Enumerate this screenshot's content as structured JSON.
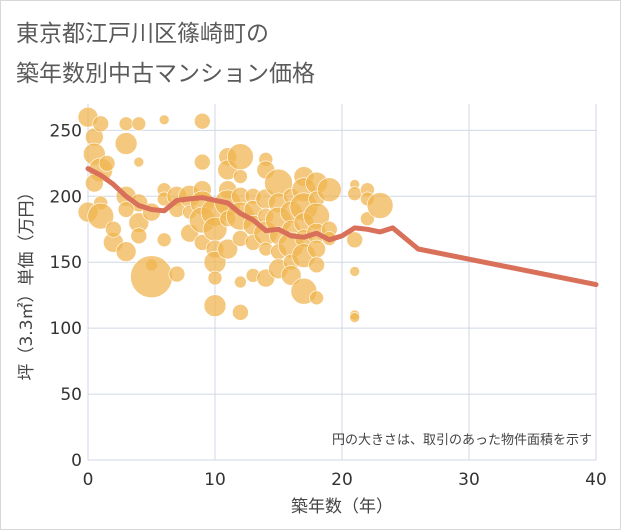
{
  "title_line1": "東京都江戸川区篠崎町の",
  "title_line2": "築年数別中古マンション価格",
  "note": "円の大きさは、取引のあった物件面積を示す",
  "colors": {
    "bubble": "#f0b44e",
    "line": "#d9705a",
    "grid": "#d0d8e4",
    "plot_bg": "#ffffff"
  },
  "chart_data": {
    "type": "scatter",
    "xlabel": "築年数（年）",
    "ylabel": "坪（3.3㎡）単価（万円）",
    "xlim": [
      0,
      40
    ],
    "ylim": [
      0,
      270
    ],
    "xticks": [
      0,
      10,
      20,
      30,
      40
    ],
    "yticks": [
      0,
      50,
      100,
      150,
      200,
      250
    ],
    "grid": true,
    "bubbles": [
      {
        "x": 0,
        "y": 260,
        "r": 10
      },
      {
        "x": 0.5,
        "y": 245,
        "r": 9
      },
      {
        "x": 1,
        "y": 255,
        "r": 8
      },
      {
        "x": 0.5,
        "y": 232,
        "r": 11
      },
      {
        "x": 1,
        "y": 220,
        "r": 12
      },
      {
        "x": 0.5,
        "y": 210,
        "r": 9
      },
      {
        "x": 1,
        "y": 195,
        "r": 7
      },
      {
        "x": 0,
        "y": 188,
        "r": 10
      },
      {
        "x": 1,
        "y": 185,
        "r": 13
      },
      {
        "x": 2,
        "y": 165,
        "r": 10
      },
      {
        "x": 2,
        "y": 175,
        "r": 8
      },
      {
        "x": 1.5,
        "y": 225,
        "r": 8
      },
      {
        "x": 3,
        "y": 255,
        "r": 7
      },
      {
        "x": 4,
        "y": 255,
        "r": 7
      },
      {
        "x": 3,
        "y": 240,
        "r": 11
      },
      {
        "x": 3,
        "y": 200,
        "r": 10
      },
      {
        "x": 4,
        "y": 195,
        "r": 9
      },
      {
        "x": 3,
        "y": 190,
        "r": 8
      },
      {
        "x": 4,
        "y": 180,
        "r": 10
      },
      {
        "x": 4,
        "y": 170,
        "r": 8
      },
      {
        "x": 3,
        "y": 158,
        "r": 10
      },
      {
        "x": 4,
        "y": 226,
        "r": 5
      },
      {
        "x": 5,
        "y": 188,
        "r": 9
      },
      {
        "x": 6,
        "y": 258,
        "r": 5
      },
      {
        "x": 6,
        "y": 205,
        "r": 7
      },
      {
        "x": 6,
        "y": 198,
        "r": 7
      },
      {
        "x": 6,
        "y": 167,
        "r": 7
      },
      {
        "x": 5,
        "y": 148,
        "r": 6
      },
      {
        "x": 5,
        "y": 139,
        "r": 21
      },
      {
        "x": 7,
        "y": 200,
        "r": 10
      },
      {
        "x": 7,
        "y": 190,
        "r": 8
      },
      {
        "x": 7,
        "y": 141,
        "r": 8
      },
      {
        "x": 8,
        "y": 200,
        "r": 11
      },
      {
        "x": 8,
        "y": 188,
        "r": 7
      },
      {
        "x": 8,
        "y": 172,
        "r": 9
      },
      {
        "x": 9,
        "y": 257,
        "r": 8
      },
      {
        "x": 9,
        "y": 226,
        "r": 8
      },
      {
        "x": 9,
        "y": 205,
        "r": 9
      },
      {
        "x": 9,
        "y": 195,
        "r": 12
      },
      {
        "x": 9,
        "y": 182,
        "r": 13
      },
      {
        "x": 9,
        "y": 165,
        "r": 8
      },
      {
        "x": 10,
        "y": 188,
        "r": 14
      },
      {
        "x": 10,
        "y": 175,
        "r": 12
      },
      {
        "x": 10,
        "y": 160,
        "r": 9
      },
      {
        "x": 10,
        "y": 150,
        "r": 11
      },
      {
        "x": 10,
        "y": 117,
        "r": 11
      },
      {
        "x": 10,
        "y": 138,
        "r": 7
      },
      {
        "x": 11,
        "y": 230,
        "r": 9
      },
      {
        "x": 11,
        "y": 220,
        "r": 10
      },
      {
        "x": 11,
        "y": 205,
        "r": 9
      },
      {
        "x": 11,
        "y": 195,
        "r": 13
      },
      {
        "x": 11,
        "y": 183,
        "r": 8
      },
      {
        "x": 11,
        "y": 160,
        "r": 10
      },
      {
        "x": 12,
        "y": 230,
        "r": 13
      },
      {
        "x": 12,
        "y": 215,
        "r": 7
      },
      {
        "x": 12,
        "y": 200,
        "r": 9
      },
      {
        "x": 12,
        "y": 185,
        "r": 14
      },
      {
        "x": 12,
        "y": 168,
        "r": 8
      },
      {
        "x": 12,
        "y": 135,
        "r": 6
      },
      {
        "x": 12,
        "y": 112,
        "r": 8
      },
      {
        "x": 13,
        "y": 200,
        "r": 8
      },
      {
        "x": 13,
        "y": 190,
        "r": 9
      },
      {
        "x": 13,
        "y": 178,
        "r": 10
      },
      {
        "x": 13,
        "y": 165,
        "r": 8
      },
      {
        "x": 13,
        "y": 140,
        "r": 7
      },
      {
        "x": 14,
        "y": 228,
        "r": 7
      },
      {
        "x": 14,
        "y": 220,
        "r": 9
      },
      {
        "x": 14,
        "y": 198,
        "r": 10
      },
      {
        "x": 14,
        "y": 185,
        "r": 8
      },
      {
        "x": 14,
        "y": 172,
        "r": 12
      },
      {
        "x": 14,
        "y": 160,
        "r": 7
      },
      {
        "x": 14,
        "y": 138,
        "r": 9
      },
      {
        "x": 15,
        "y": 210,
        "r": 14
      },
      {
        "x": 15,
        "y": 195,
        "r": 10
      },
      {
        "x": 15,
        "y": 182,
        "r": 13
      },
      {
        "x": 15,
        "y": 170,
        "r": 9
      },
      {
        "x": 15,
        "y": 158,
        "r": 8
      },
      {
        "x": 15,
        "y": 145,
        "r": 10
      },
      {
        "x": 16,
        "y": 200,
        "r": 8
      },
      {
        "x": 16,
        "y": 188,
        "r": 11
      },
      {
        "x": 16,
        "y": 175,
        "r": 9
      },
      {
        "x": 16,
        "y": 163,
        "r": 13
      },
      {
        "x": 16,
        "y": 150,
        "r": 8
      },
      {
        "x": 16,
        "y": 140,
        "r": 10
      },
      {
        "x": 17,
        "y": 215,
        "r": 10
      },
      {
        "x": 17,
        "y": 205,
        "r": 12
      },
      {
        "x": 17,
        "y": 192,
        "r": 14
      },
      {
        "x": 17,
        "y": 180,
        "r": 10
      },
      {
        "x": 17,
        "y": 168,
        "r": 9
      },
      {
        "x": 17,
        "y": 155,
        "r": 12
      },
      {
        "x": 17,
        "y": 128,
        "r": 13
      },
      {
        "x": 18,
        "y": 210,
        "r": 11
      },
      {
        "x": 18,
        "y": 198,
        "r": 8
      },
      {
        "x": 18,
        "y": 185,
        "r": 13
      },
      {
        "x": 18,
        "y": 172,
        "r": 10
      },
      {
        "x": 18,
        "y": 160,
        "r": 9
      },
      {
        "x": 18,
        "y": 148,
        "r": 8
      },
      {
        "x": 18,
        "y": 123,
        "r": 7
      },
      {
        "x": 19,
        "y": 205,
        "r": 12
      },
      {
        "x": 19,
        "y": 175,
        "r": 8
      },
      {
        "x": 19,
        "y": 168,
        "r": 7
      },
      {
        "x": 21,
        "y": 209,
        "r": 5
      },
      {
        "x": 21,
        "y": 202,
        "r": 7
      },
      {
        "x": 21,
        "y": 167,
        "r": 8
      },
      {
        "x": 21,
        "y": 143,
        "r": 5
      },
      {
        "x": 21,
        "y": 110,
        "r": 5
      },
      {
        "x": 21,
        "y": 108,
        "r": 5
      },
      {
        "x": 22,
        "y": 205,
        "r": 7
      },
      {
        "x": 22,
        "y": 198,
        "r": 7
      },
      {
        "x": 22,
        "y": 183,
        "r": 7
      },
      {
        "x": 23,
        "y": 193,
        "r": 13
      }
    ],
    "series": [
      {
        "x": [
          0,
          1,
          2,
          3,
          4,
          5,
          6,
          7,
          8,
          9,
          10,
          11,
          12,
          13,
          14,
          15,
          16,
          17,
          18,
          19,
          20,
          21,
          22,
          23,
          24,
          26,
          40
        ],
        "y": [
          221,
          216,
          209,
          200,
          193,
          190,
          189,
          197,
          198,
          199,
          197,
          195,
          187,
          182,
          174,
          175,
          170,
          169,
          172,
          167,
          170,
          176,
          175,
          173,
          176,
          160,
          133
        ]
      }
    ]
  }
}
